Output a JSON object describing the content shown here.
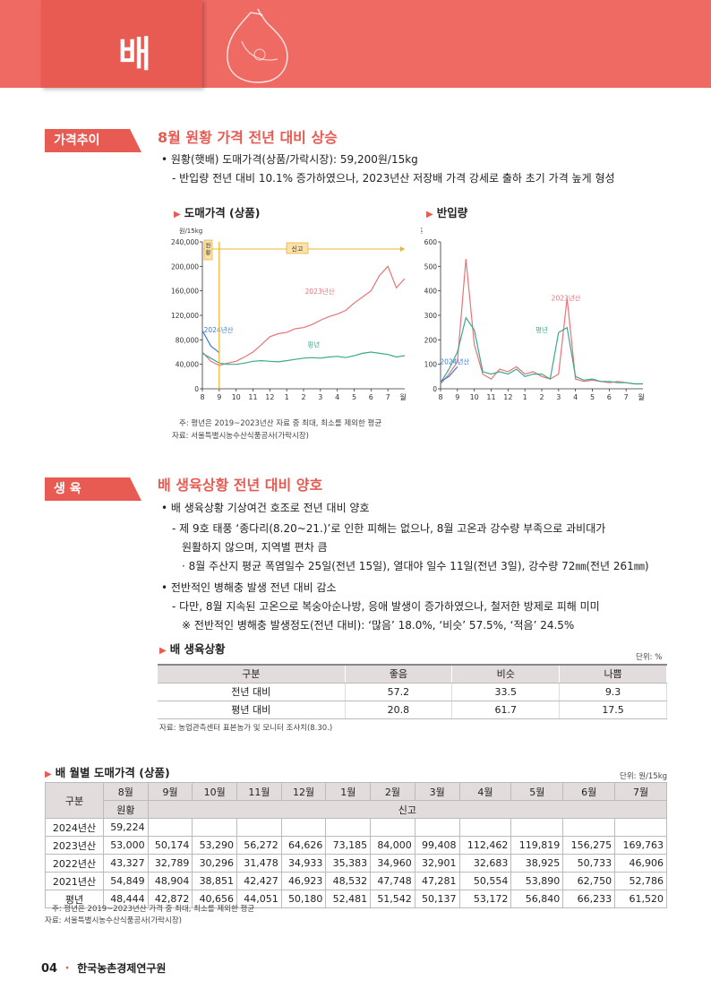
{
  "header": {
    "title": "배"
  },
  "section1": {
    "tag": "가격추이",
    "title": "8월 원황 가격 전년 대비 상승",
    "bullet1": "• 원황(햇배) 도매가격(상품/가락시장): 59,200원/15kg",
    "sub1": "- 반입량 전년 대비 10.1% 증가하였으나, 2023년산 저장배 가격 강세로 출하 초기 가격 높게 형성",
    "chart1_title": "도매가격 (상품)",
    "chart2_title": "반입량",
    "note": "주: 평년은 2019~2023년산 자료 중 최대, 최소를 제외한 평균",
    "source": "자료: 서울특별시농수산식품공사(가락시장)"
  },
  "chart_data": [
    {
      "type": "line",
      "title": "도매가격 (상품)",
      "ylabel": "원/15kg",
      "xlabel": "월",
      "x_ticks": [
        "8",
        "9",
        "10",
        "11",
        "12",
        "1",
        "2",
        "3",
        "4",
        "5",
        "6",
        "7"
      ],
      "ylim": [
        0,
        240000
      ],
      "y_ticks": [
        "0",
        "40,000",
        "80,000",
        "120,000",
        "160,000",
        "200,000",
        "240,000"
      ],
      "annotations": [
        "원황",
        "신고"
      ],
      "series": [
        {
          "name": "2023년산",
          "color": "#e8737a",
          "values": [
            60000,
            45000,
            38000,
            42000,
            45000,
            52000,
            60000,
            72000,
            85000,
            90000,
            92000,
            98000,
            100000,
            105000,
            112000,
            118000,
            122000,
            128000,
            140000,
            150000,
            160000,
            185000,
            200000,
            165000,
            180000
          ]
        },
        {
          "name": "평년",
          "color": "#3aaa8c",
          "values": [
            58000,
            50000,
            42000,
            40000,
            40000,
            42000,
            45000,
            46000,
            45000,
            44000,
            46000,
            48000,
            50000,
            51000,
            50000,
            52000,
            53000,
            51000,
            54000,
            58000,
            60000,
            58000,
            56000,
            52000,
            54000
          ]
        },
        {
          "name": "2024년산",
          "color": "#3a7bd5",
          "values": [
            95000,
            70000,
            59000
          ]
        }
      ]
    },
    {
      "type": "line",
      "title": "반입량",
      "ylabel": "톤",
      "xlabel": "월",
      "x_ticks": [
        "8",
        "9",
        "10",
        "11",
        "12",
        "1",
        "2",
        "3",
        "4",
        "5",
        "6",
        "7"
      ],
      "ylim": [
        0,
        600
      ],
      "y_ticks": [
        "0",
        "100",
        "200",
        "300",
        "400",
        "500",
        "600"
      ],
      "series": [
        {
          "name": "2023년산",
          "color": "#e8737a",
          "values": [
            20,
            60,
            110,
            530,
            180,
            60,
            40,
            80,
            70,
            90,
            60,
            70,
            50,
            40,
            60,
            370,
            40,
            30,
            35,
            30,
            25,
            30,
            25,
            20,
            20
          ]
        },
        {
          "name": "평년",
          "color": "#3aaa8c",
          "values": [
            25,
            80,
            150,
            290,
            240,
            70,
            60,
            70,
            60,
            80,
            50,
            60,
            60,
            40,
            230,
            250,
            50,
            35,
            40,
            30,
            30,
            25,
            25,
            20,
            20
          ]
        },
        {
          "name": "2024년산",
          "color": "#3a7bd5",
          "values": [
            30,
            50,
            90
          ]
        }
      ]
    }
  ],
  "section2": {
    "tag": "생 육",
    "title": "배 생육상황 전년 대비 양호",
    "b1": "• 배 생육상황 기상여건 호조로 전년 대비 양호",
    "b1_s1a": "- 제 9호 태풍 ‘종다리(8.20~21.)’로 인한 피해는 없으나, 8월 고온과 강수량 부족으로 과비대가",
    "b1_s1b": "원활하지 않으며, 지역별 편차 큼",
    "b1_s2": "· 8월 주산지 평균 폭염일수 25일(전년 15일), 열대야 일수 11일(전년 3일), 강수량 72㎜(전년 261㎜)",
    "b2": "• 전반적인 병해충 발생 전년 대비 감소",
    "b2_s1": "- 다만, 8월 지속된 고온으로 복숭아순나방, 응애 발생이 증가하였으나, 철저한 방제로 피해 미미",
    "b2_s2": "※ 전반적인 병해충 발생정도(전년 대비): ‘많음’ 18.0%, ‘비슷’ 57.5%, ‘적음’ 24.5%",
    "table_title": "배 생육상황",
    "unit": "단위: %",
    "headers": [
      "구분",
      "좋음",
      "비슷",
      "나쁨"
    ],
    "rows": [
      [
        "전년 대비",
        "57.2",
        "33.5",
        "9.3"
      ],
      [
        "평년 대비",
        "20.8",
        "61.7",
        "17.5"
      ]
    ],
    "source": "자료: 농업관측센터 표본농가 및 모니터 조사치(8.30.)"
  },
  "section3": {
    "title": "배 월별 도매가격 (상품)",
    "unit": "단위: 원/15kg",
    "h_gubun": "구분",
    "months": [
      "8월",
      "9월",
      "10월",
      "11월",
      "12월",
      "1월",
      "2월",
      "3월",
      "4월",
      "5월",
      "6월",
      "7월"
    ],
    "h_wonhwang": "원황",
    "h_singo": "신고",
    "rows": [
      {
        "label": "2024년산",
        "values": [
          "59,224",
          "",
          "",
          "",
          "",
          "",
          "",
          "",
          "",
          "",
          "",
          ""
        ]
      },
      {
        "label": "2023년산",
        "values": [
          "53,000",
          "50,174",
          "53,290",
          "56,272",
          "64,626",
          "73,185",
          "84,000",
          "99,408",
          "112,462",
          "119,819",
          "156,275",
          "169,763"
        ]
      },
      {
        "label": "2022년산",
        "values": [
          "43,327",
          "32,789",
          "30,296",
          "31,478",
          "34,933",
          "35,383",
          "34,960",
          "32,901",
          "32,683",
          "38,925",
          "50,733",
          "46,906"
        ]
      },
      {
        "label": "2021년산",
        "values": [
          "54,849",
          "48,904",
          "38,851",
          "42,427",
          "46,923",
          "48,532",
          "47,748",
          "47,281",
          "50,554",
          "53,890",
          "62,750",
          "52,786"
        ]
      },
      {
        "label": "평년",
        "values": [
          "48,444",
          "42,872",
          "40,656",
          "44,051",
          "50,180",
          "52,481",
          "51,542",
          "50,137",
          "53,172",
          "56,840",
          "66,233",
          "61,520"
        ]
      }
    ],
    "note": "주: 평년은 2019~2023년산 가격 중 최대, 최소를 제외한 평균",
    "source": "자료: 서울특별시농수산식품공사(가락시장)"
  },
  "footer": {
    "page": "04",
    "sep": "·",
    "org": "한국농촌경제연구원"
  }
}
